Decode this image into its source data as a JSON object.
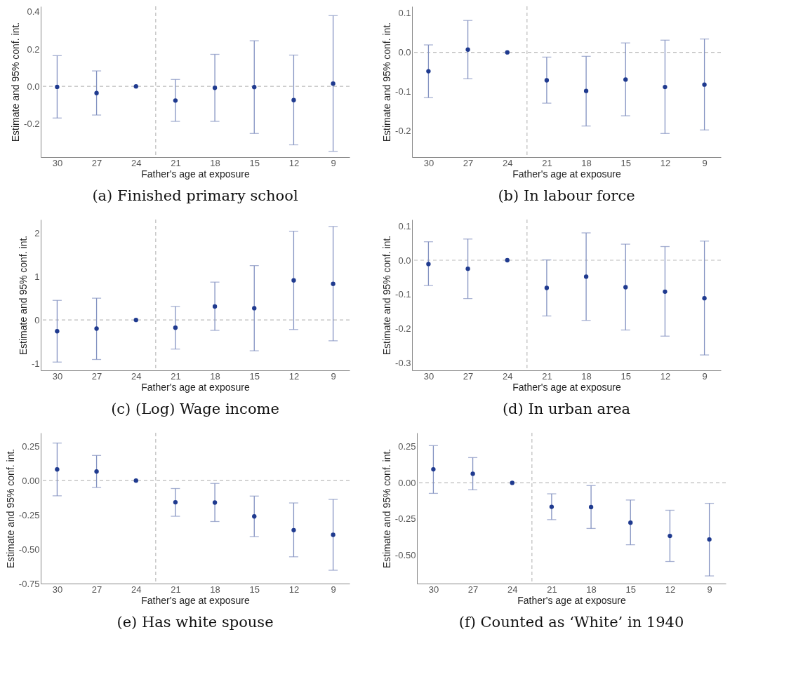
{
  "chart_data": [
    {
      "type": "scatter",
      "title": "(a) Finished primary school",
      "xlabel": "Father's age at exposure",
      "ylabel": "Estimate and 95% conf. int.",
      "x": [
        30,
        27,
        24,
        21,
        18,
        15,
        12,
        9
      ],
      "xlim": [
        31.25,
        7.75
      ],
      "xticks": [
        30,
        27,
        24,
        21,
        18,
        15,
        12,
        9
      ],
      "ylim": [
        -0.38,
        0.43
      ],
      "yticks": [
        {
          "value": -0.2,
          "label": "-0.2"
        },
        {
          "value": 0,
          "label": "0.0"
        },
        {
          "value": 0.2,
          "label": "0.2"
        },
        {
          "value": 0.4,
          "label": "0.4"
        }
      ],
      "grid": false,
      "marker": "circle",
      "series": [
        {
          "color": "#1f3a8f",
          "values": [
            -0.003,
            -0.036,
            0,
            -0.076,
            -0.008,
            -0.004,
            -0.074,
            0.015
          ],
          "errors": [
            [
              -0.17,
              0.165
            ],
            [
              -0.154,
              0.083
            ],
            null,
            [
              -0.188,
              0.037
            ],
            [
              -0.188,
              0.172
            ],
            [
              -0.253,
              0.245
            ],
            [
              -0.314,
              0.168
            ],
            [
              -0.349,
              0.38
            ]
          ]
        }
      ],
      "ref_lines": [
        {
          "axis": "x",
          "value": 22.5,
          "color": "#bbbbbb",
          "line_style": "dashed"
        },
        {
          "axis": "y",
          "value": 0,
          "color": "#bbbbbb",
          "line_style": "dashed"
        }
      ]
    },
    {
      "type": "scatter",
      "title": "(b) In labour force",
      "xlabel": "Father's age at exposure",
      "ylabel": "Estimate and 95% conf. int.",
      "x": [
        30,
        27,
        24,
        21,
        18,
        15,
        12,
        9
      ],
      "xlim": [
        31.25,
        7.75
      ],
      "xticks": [
        30,
        27,
        24,
        21,
        18,
        15,
        12,
        9
      ],
      "ylim": [
        -0.266,
        0.117
      ],
      "yticks": [
        {
          "value": -0.2,
          "label": "-0.2"
        },
        {
          "value": -0.1,
          "label": "-0.1"
        },
        {
          "value": 0,
          "label": "0.0"
        },
        {
          "value": 0.1,
          "label": "0.1"
        }
      ],
      "grid": false,
      "marker": "circle",
      "series": [
        {
          "color": "#1f3a8f",
          "values": [
            -0.048,
            0.007,
            0,
            -0.071,
            -0.098,
            -0.069,
            -0.088,
            -0.082
          ],
          "errors": [
            [
              -0.115,
              0.019
            ],
            [
              -0.067,
              0.081
            ],
            null,
            [
              -0.129,
              -0.012
            ],
            [
              -0.187,
              -0.01
            ],
            [
              -0.161,
              0.024
            ],
            [
              -0.206,
              0.031
            ],
            [
              -0.197,
              0.034
            ]
          ]
        }
      ],
      "ref_lines": [
        {
          "axis": "x",
          "value": 22.5,
          "color": "#bbbbbb",
          "line_style": "dashed"
        },
        {
          "axis": "y",
          "value": 0,
          "color": "#bbbbbb",
          "line_style": "dashed"
        }
      ]
    },
    {
      "type": "scatter",
      "title": "(c) (Log) Wage income",
      "xlabel": "Father's age at exposure",
      "ylabel": "Estimate and 95% conf. int.",
      "x": [
        30,
        27,
        24,
        21,
        18,
        15,
        12,
        9
      ],
      "xlim": [
        31.25,
        7.75
      ],
      "xticks": [
        30,
        27,
        24,
        21,
        18,
        15,
        12,
        9
      ],
      "ylim": [
        -1.16,
        2.31
      ],
      "yticks": [
        -1,
        0,
        1,
        2
      ],
      "grid": false,
      "marker": "circle",
      "series": [
        {
          "color": "#1f3a8f",
          "values": [
            -0.26,
            -0.2,
            0,
            -0.18,
            0.31,
            0.27,
            0.91,
            0.83
          ],
          "errors": [
            [
              -0.97,
              0.45
            ],
            [
              -0.91,
              0.5
            ],
            null,
            [
              -0.67,
              0.31
            ],
            [
              -0.24,
              0.87
            ],
            [
              -0.71,
              1.25
            ],
            [
              -0.22,
              2.04
            ],
            [
              -0.48,
              2.15
            ]
          ]
        }
      ],
      "ref_lines": [
        {
          "axis": "x",
          "value": 22.5,
          "color": "#bbbbbb",
          "line_style": "dashed"
        },
        {
          "axis": "y",
          "value": 0,
          "color": "#bbbbbb",
          "line_style": "dashed"
        }
      ]
    },
    {
      "type": "scatter",
      "title": "(d) In urban area",
      "xlabel": "Father's age at exposure",
      "ylabel": "Estimate and 95% conf. int.",
      "x": [
        30,
        27,
        24,
        21,
        18,
        15,
        12,
        9
      ],
      "xlim": [
        31.25,
        7.75
      ],
      "xticks": [
        30,
        27,
        24,
        21,
        18,
        15,
        12,
        9
      ],
      "ylim": [
        -0.322,
        0.119
      ],
      "yticks": [
        {
          "value": -0.3,
          "label": "-0.3"
        },
        {
          "value": -0.2,
          "label": "-0.2"
        },
        {
          "value": -0.1,
          "label": "-0.1"
        },
        {
          "value": 0,
          "label": "0.0"
        },
        {
          "value": 0.1,
          "label": "0.1"
        }
      ],
      "grid": false,
      "marker": "circle",
      "series": [
        {
          "color": "#1f3a8f",
          "values": [
            -0.011,
            -0.025,
            0,
            -0.081,
            -0.048,
            -0.079,
            -0.092,
            -0.111
          ],
          "errors": [
            [
              -0.074,
              0.054
            ],
            [
              -0.112,
              0.062
            ],
            null,
            [
              -0.163,
              0.001
            ],
            [
              -0.176,
              0.08
            ],
            [
              -0.204,
              0.047
            ],
            [
              -0.222,
              0.04
            ],
            [
              -0.277,
              0.056
            ]
          ]
        }
      ],
      "ref_lines": [
        {
          "axis": "x",
          "value": 22.5,
          "color": "#bbbbbb",
          "line_style": "dashed"
        },
        {
          "axis": "y",
          "value": 0,
          "color": "#bbbbbb",
          "line_style": "dashed"
        }
      ]
    },
    {
      "type": "scatter",
      "title": "(e) Has white spouse",
      "xlabel": "Father's age at exposure",
      "ylabel": "Estimate and 95% conf. int.",
      "x": [
        30,
        27,
        24,
        21,
        18,
        15,
        12,
        9
      ],
      "xlim": [
        31.25,
        7.75
      ],
      "xticks": [
        30,
        27,
        24,
        21,
        18,
        15,
        12,
        9
      ],
      "ylim": [
        -0.75,
        0.348
      ],
      "yticks": [
        {
          "value": -0.75,
          "label": "-0.75"
        },
        {
          "value": -0.5,
          "label": "-0.50"
        },
        {
          "value": -0.25,
          "label": "-0.25"
        },
        {
          "value": 0,
          "label": "0.00"
        },
        {
          "value": 0.25,
          "label": "0.25"
        }
      ],
      "grid": false,
      "marker": "circle",
      "series": [
        {
          "color": "#1f3a8f",
          "values": [
            0.081,
            0.066,
            0,
            -0.158,
            -0.16,
            -0.261,
            -0.361,
            -0.395
          ],
          "errors": [
            [
              -0.111,
              0.273
            ],
            [
              -0.05,
              0.183
            ],
            null,
            [
              -0.26,
              -0.058
            ],
            [
              -0.298,
              -0.021
            ],
            [
              -0.408,
              -0.113
            ],
            [
              -0.555,
              -0.163
            ],
            [
              -0.653,
              -0.137
            ]
          ]
        }
      ],
      "ref_lines": [
        {
          "axis": "x",
          "value": 22.5,
          "color": "#bbbbbb",
          "line_style": "dashed"
        },
        {
          "axis": "y",
          "value": 0,
          "color": "#bbbbbb",
          "line_style": "dashed"
        }
      ]
    },
    {
      "type": "scatter",
      "title": "(f) Counted as ‘White’ in 1940",
      "xlabel": "Father's age at exposure",
      "ylabel": "Estimate and 95% conf. int.",
      "x": [
        30,
        27,
        24,
        21,
        18,
        15,
        12,
        9
      ],
      "xlim": [
        31.25,
        7.75
      ],
      "xticks": [
        30,
        27,
        24,
        21,
        18,
        15,
        12,
        9
      ],
      "ylim": [
        -0.698,
        0.347
      ],
      "yticks": [
        {
          "value": -0.5,
          "label": "-0.50"
        },
        {
          "value": -0.25,
          "label": "-0.25"
        },
        {
          "value": 0,
          "label": "0.00"
        },
        {
          "value": 0.25,
          "label": "0.25"
        }
      ],
      "grid": false,
      "marker": "circle",
      "series": [
        {
          "color": "#1f3a8f",
          "values": [
            0.094,
            0.063,
            0,
            -0.166,
            -0.168,
            -0.276,
            -0.368,
            -0.392
          ],
          "errors": [
            [
              -0.073,
              0.258
            ],
            [
              -0.048,
              0.175
            ],
            null,
            [
              -0.255,
              -0.076
            ],
            [
              -0.316,
              -0.019
            ],
            [
              -0.429,
              -0.119
            ],
            [
              -0.545,
              -0.19
            ],
            [
              -0.645,
              -0.142
            ]
          ]
        }
      ],
      "ref_lines": [
        {
          "axis": "x",
          "value": 22.5,
          "color": "#bbbbbb",
          "line_style": "dashed"
        },
        {
          "axis": "y",
          "value": 0,
          "color": "#bbbbbb",
          "line_style": "dashed"
        }
      ]
    }
  ]
}
